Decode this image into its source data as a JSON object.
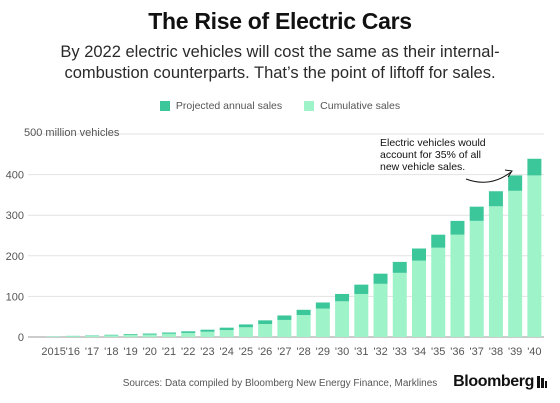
{
  "header": {
    "title": "The Rise of Electric Cars",
    "subtitle": "By 2022 electric vehicles will cost the same as their internal-combustion counterparts. That’s the point of liftoff for sales."
  },
  "legend": {
    "projected": "Projected annual sales",
    "cumulative": "Cumulative sales"
  },
  "colors": {
    "projected": "#3cc79a",
    "cumulative": "#9ff3c9",
    "grid": "#e2e2e2",
    "axis_text": "#555555"
  },
  "annotation": {
    "lines": [
      "Electric vehicles would",
      "account for 35% of all",
      "new vehicle sales."
    ]
  },
  "chart_data": {
    "type": "bar",
    "stacked": true,
    "categories": [
      "2015",
      "'16",
      "'17",
      "'18",
      "'19",
      "'20",
      "'21",
      "'22",
      "'23",
      "'24",
      "'25",
      "'26",
      "'27",
      "'28",
      "'29",
      "'30",
      "'31",
      "'32",
      "'33",
      "'34",
      "'35",
      "'36",
      "'37",
      "'38",
      "'39",
      "'40"
    ],
    "series": [
      {
        "name": "Cumulative sales",
        "values": [
          1,
          2,
          3,
          4,
          5,
          6,
          8,
          10,
          13,
          17,
          24,
          32,
          42,
          54,
          70,
          88,
          106,
          131,
          158,
          188,
          220,
          252,
          286,
          322,
          360,
          398
        ]
      },
      {
        "name": "Projected annual sales",
        "values": [
          0.5,
          0.8,
          1,
          1.5,
          2,
          2.5,
          3,
          4,
          5,
          6,
          7,
          9,
          11,
          13,
          15,
          18,
          23,
          25,
          27,
          30,
          32,
          34,
          35,
          37,
          38,
          41
        ]
      }
    ],
    "ylabel": "500 million vehicles",
    "yticks": [
      0,
      100,
      200,
      300,
      400
    ],
    "ylim": [
      0,
      500
    ],
    "grid": true
  },
  "footer": {
    "source": "Sources: Data compiled by Bloomberg New Energy Finance, Marklines",
    "brand": "Bloomberg"
  }
}
